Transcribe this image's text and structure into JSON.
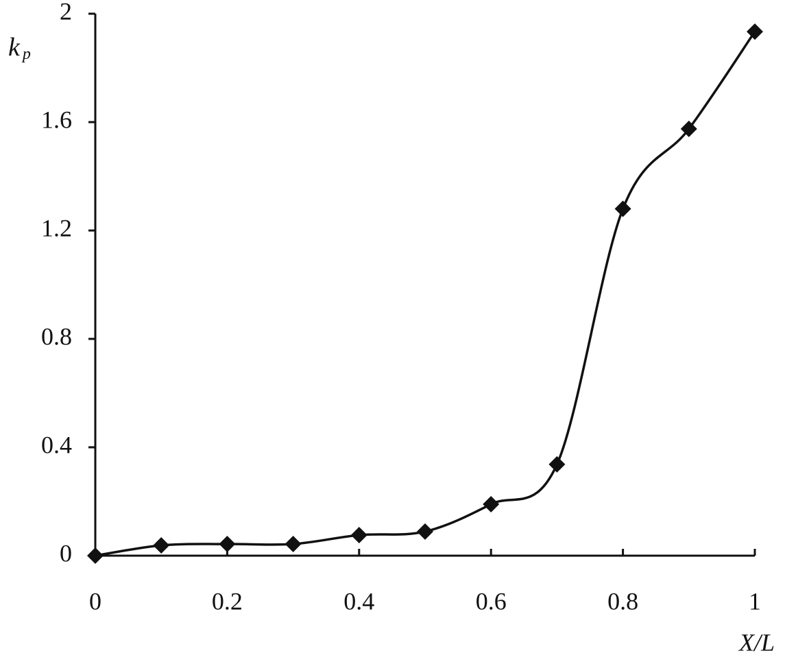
{
  "chart_data": {
    "type": "line",
    "y_label": {
      "base": "k",
      "sub": "p"
    },
    "x_label": "X/L",
    "x": [
      0,
      0.1,
      0.2,
      0.3,
      0.4,
      0.5,
      0.6,
      0.7,
      0.8,
      0.9,
      1
    ],
    "series": [
      {
        "color": "#111111",
        "values": [
          0,
          0.038,
          0.043,
          0.043,
          0.076,
          0.089,
          0.19,
          0.337,
          1.28,
          1.575,
          1.934
        ]
      }
    ],
    "xlim": [
      0,
      1
    ],
    "xticks": [
      0,
      0.2,
      0.4,
      0.6,
      0.8,
      1
    ],
    "ylim": [
      0,
      2
    ],
    "yticks": [
      0,
      0.4,
      0.8,
      1.2,
      1.6,
      2
    ],
    "grid": false,
    "marker": "diamond"
  }
}
